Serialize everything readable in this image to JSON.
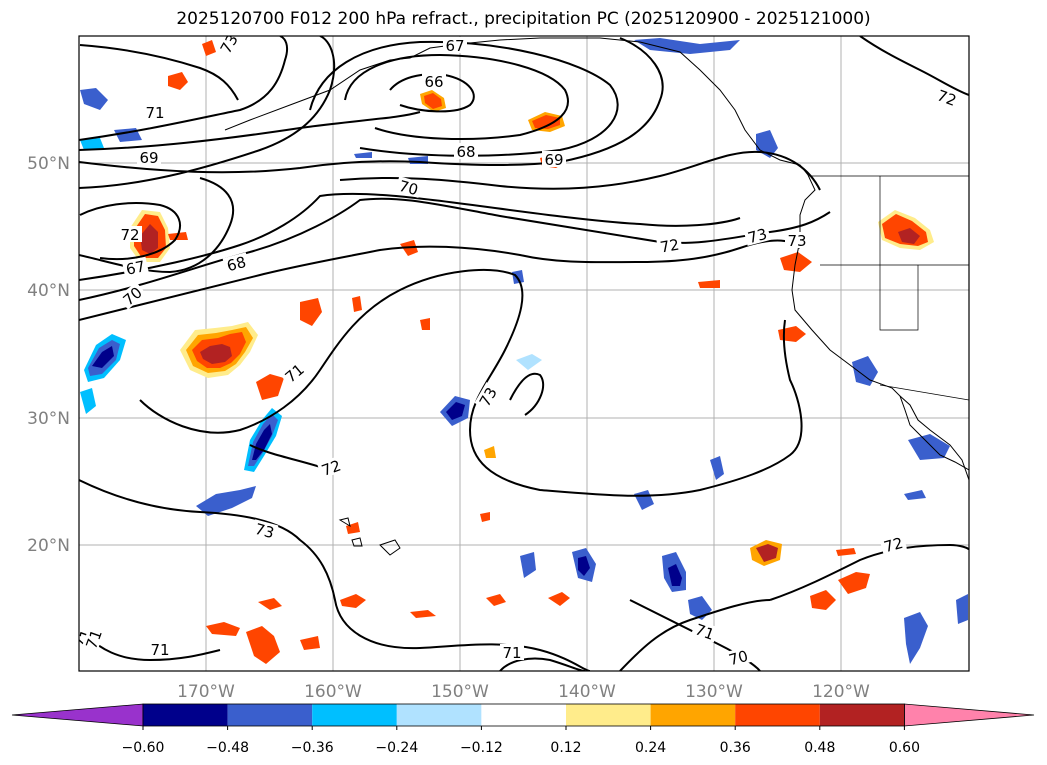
{
  "title": "2025120700 F012 200 hPa refract., precipitation PC (2025120900 - 2025121000)",
  "map": {
    "lat_labels": [
      "50°N",
      "40°N",
      "30°N",
      "20°N"
    ],
    "lon_labels": [
      "170°W",
      "160°W",
      "150°W",
      "140°W",
      "130°W",
      "120°W"
    ],
    "contour_labels": [
      "73",
      "72",
      "71",
      "69",
      "67",
      "66",
      "68",
      "69",
      "70",
      "72",
      "73",
      "73",
      "72",
      "67",
      "68",
      "70",
      "71",
      "73",
      "72",
      "73",
      "72",
      "71",
      "70",
      "71",
      "71",
      "71",
      "71"
    ]
  },
  "colorbar": {
    "tick_labels": [
      "−0.60",
      "−0.48",
      "−0.36",
      "−0.24",
      "−0.12",
      "0.12",
      "0.24",
      "0.36",
      "0.48",
      "0.60"
    ],
    "colors": [
      "#9932cc",
      "#00008b",
      "#3a5fcd",
      "#00bfff",
      "#b0e2ff",
      "#ffffff",
      "#ffec8b",
      "#ffa500",
      "#ff4500",
      "#b22222",
      "#ff82ab"
    ]
  }
}
